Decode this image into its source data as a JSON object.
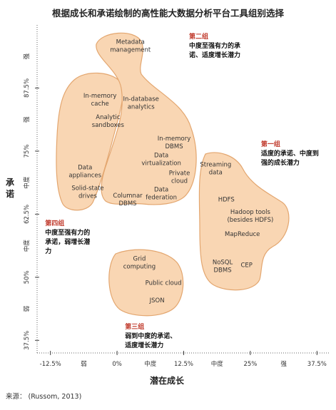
{
  "title": "根据成长和承诺绘制的高性能大数据分析平台工具组别选择",
  "xlabel": "潜在成长",
  "ylabel": "承诺",
  "source": "来源： (Russom, 2013)",
  "chart_data": {
    "type": "bubble-diagram",
    "x_ticks": [
      {
        "label": "-12.5%",
        "x": -12.5
      },
      {
        "label": "0%",
        "x": 0
      },
      {
        "label": "12.5%",
        "x": 12.5
      },
      {
        "label": "25%",
        "x": 25
      },
      {
        "label": "37.5%",
        "x": 37.5
      }
    ],
    "x_categories": [
      {
        "label": "弱",
        "x": -6.25
      },
      {
        "label": "中度",
        "x": 6.25
      },
      {
        "label": "中度",
        "x": 18.75
      },
      {
        "label": "强",
        "x": 31.25
      }
    ],
    "y_ticks": [
      {
        "label": "87.5%",
        "y": 87.5
      },
      {
        "label": "75%",
        "y": 75
      },
      {
        "label": "62.5%",
        "y": 62.5
      },
      {
        "label": "50%",
        "y": 50
      },
      {
        "label": "37.5%",
        "y": 37.5
      }
    ],
    "y_categories": [
      {
        "label": "强",
        "y": 93.75
      },
      {
        "label": "强",
        "y": 81.25
      },
      {
        "label": "中度",
        "y": 68.75
      },
      {
        "label": "中度",
        "y": 56.25
      },
      {
        "label": "弱",
        "y": 43.75
      }
    ],
    "xlim": [
      -15,
      40
    ],
    "ylim": [
      35,
      100
    ],
    "items": [
      {
        "name": "Metadata\nmanagement",
        "x": 2.5,
        "y": 95.5
      },
      {
        "name": "In-memory\ncache",
        "x": -3.2,
        "y": 84.8
      },
      {
        "name": "Analytic\nsandboxes",
        "x": -1.7,
        "y": 80.6
      },
      {
        "name": "In-database\nanalytics",
        "x": 4.5,
        "y": 84.2
      },
      {
        "name": "In-memory\nDBMS",
        "x": 10.7,
        "y": 76.3
      },
      {
        "name": "Data\nvirtualization",
        "x": 8.3,
        "y": 73.0
      },
      {
        "name": "Data\nappliances",
        "x": -6.0,
        "y": 70.6
      },
      {
        "name": "Private\ncloud",
        "x": 11.7,
        "y": 69.5
      },
      {
        "name": "Solid-state\ndrives",
        "x": -5.5,
        "y": 66.5
      },
      {
        "name": "Columnar\nDBMS",
        "x": 2.0,
        "y": 65.0
      },
      {
        "name": "Data\nfederation",
        "x": 8.3,
        "y": 66.2
      },
      {
        "name": "Streaming\ndata",
        "x": 18.5,
        "y": 71.2
      },
      {
        "name": "HDFS",
        "x": 20.5,
        "y": 65.0
      },
      {
        "name": "Hadoop tools\n(besides HDFS)",
        "x": 25.0,
        "y": 61.8
      },
      {
        "name": "MapReduce",
        "x": 23.5,
        "y": 58.2
      },
      {
        "name": "NoSQL\nDBMS",
        "x": 19.8,
        "y": 51.8
      },
      {
        "name": "CEP",
        "x": 24.3,
        "y": 52.0
      },
      {
        "name": "Grid\ncomputing",
        "x": 4.2,
        "y": 52.5
      },
      {
        "name": "Public cloud",
        "x": 8.7,
        "y": 48.5
      },
      {
        "name": "JSON",
        "x": 7.5,
        "y": 45.0
      }
    ],
    "groups": [
      {
        "title": "第一组",
        "desc": [
          "适度的承诺、中度到",
          "强的成长潜力"
        ],
        "x": 27.0,
        "y": 76.0
      },
      {
        "title": "第二组",
        "desc": [
          "中度至强有力的承",
          "诺、适度增长潜力"
        ],
        "x": 13.5,
        "y": 97.3
      },
      {
        "title": "第三组",
        "desc": [
          "弱到中度的承诺、",
          "适度增长潜力"
        ],
        "x": 1.5,
        "y": 39.8
      },
      {
        "title": "第四组",
        "desc": [
          "中度至强有力的",
          "承诺，弱增长潜",
          "力"
        ],
        "x": -13.5,
        "y": 60.3
      }
    ]
  }
}
